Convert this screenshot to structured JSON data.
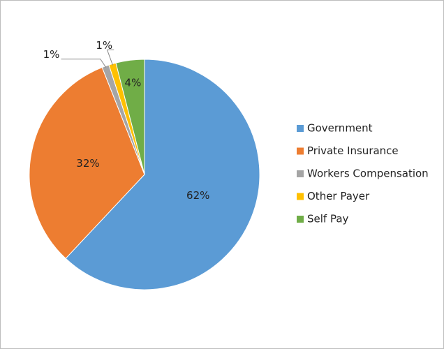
{
  "chart_data": {
    "type": "pie",
    "categories": [
      "Government",
      "Private Insurance",
      "Workers Compensation",
      "Other Payer",
      "Self Pay"
    ],
    "values": [
      62,
      32,
      1,
      1,
      4
    ],
    "value_labels": [
      "62%",
      "32%",
      "1%",
      "1%",
      "4%"
    ],
    "colors": [
      "#5b9bd5",
      "#ed7d31",
      "#a5a5a5",
      "#ffc000",
      "#70ad47"
    ],
    "legend": "right"
  }
}
